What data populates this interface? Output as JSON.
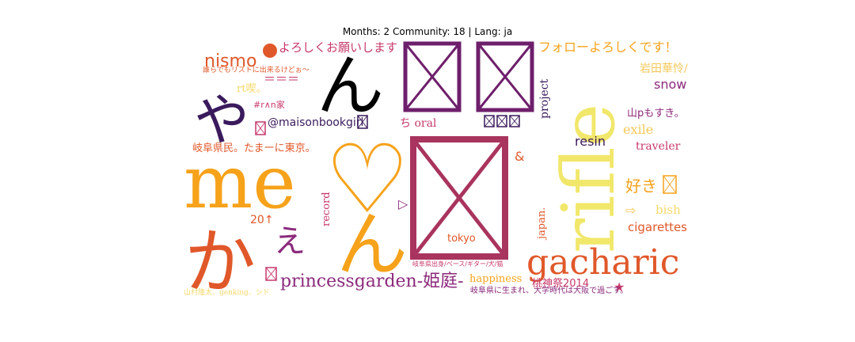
{
  "title": "Months: 2 Community: 18 | Lang: ja",
  "chart_data": {
    "type": "wordcloud",
    "title": "Months: 2 Community: 18 | Lang: ja",
    "words": [
      {
        "text": "me",
        "color": "#f6a21a",
        "size": "xl"
      },
      {
        "text": "♡",
        "color": "#f6a21a",
        "size": "xl"
      },
      {
        "text": "rifle",
        "color": "#f1e76a",
        "size": "xl",
        "rotate": true
      },
      {
        "text": "gacharic",
        "color": "#e0582a",
        "size": "l"
      },
      {
        "text": "princessgarden-姫庭-",
        "color": "#8c2a7c",
        "size": "m"
      },
      {
        "text": "nismo",
        "color": "#e0582a",
        "size": "m"
      },
      {
        "text": "よろしくお願いします",
        "color": "#c7386a",
        "size": "m"
      },
      {
        "text": "フォローよろしくです！",
        "color": "#f6a21a",
        "size": "m"
      },
      {
        "text": "snow",
        "color": "#8c2a7c",
        "size": "s"
      },
      {
        "text": "岩田華怜/",
        "color": "#f6c85a",
        "size": "s"
      },
      {
        "text": "山pもすき。",
        "color": "#8c2a7c",
        "size": "s"
      },
      {
        "text": "exile",
        "color": "#f6c85a",
        "size": "s"
      },
      {
        "text": "traveler",
        "color": "#c7386a",
        "size": "s"
      },
      {
        "text": "resin",
        "color": "#3a1a5c",
        "size": "s"
      },
      {
        "text": "好き",
        "color": "#f6a21a",
        "size": "m"
      },
      {
        "text": "bish",
        "color": "#f6d86a",
        "size": "s"
      },
      {
        "text": "cigarettes",
        "color": "#e0582a",
        "size": "s"
      },
      {
        "text": "happiness",
        "color": "#f6a21a",
        "size": "s"
      },
      {
        "text": "桃神祭2014",
        "color": "#c7386a",
        "size": "s"
      },
      {
        "text": "tokyo",
        "color": "#e0582a",
        "size": "s"
      },
      {
        "text": "@maisonbookgirl",
        "color": "#3a1a5c",
        "size": "s"
      },
      {
        "text": "ち oral",
        "color": "#c7386a",
        "size": "s"
      },
      {
        "text": "岐阜県民。たまーに東京。",
        "color": "#e0582a",
        "size": "s"
      },
      {
        "text": "project",
        "color": "#3a1a5c",
        "size": "s",
        "rotate": true
      },
      {
        "text": "record",
        "color": "#c7386a",
        "size": "s",
        "rotate": true
      },
      {
        "text": "japan.",
        "color": "#e0582a",
        "size": "s",
        "rotate": true
      },
      {
        "text": "え",
        "color": "#8c2a7c",
        "size": "m"
      },
      {
        "text": "ん",
        "color": "#f6a21a",
        "size": "l"
      },
      {
        "text": "か",
        "color": "#e0582a",
        "size": "l"
      },
      {
        "text": "や",
        "color": "#3a1a5c",
        "size": "l"
      },
      {
        "text": "ん",
        "color": "#000000",
        "size": "l"
      },
      {
        "text": "20↑",
        "color": "#e0582a",
        "size": "s"
      },
      {
        "text": "＝＝＝",
        "color": "#c7386a",
        "size": "s"
      },
      {
        "text": "rt喫。",
        "color": "#f6d86a",
        "size": "s"
      },
      {
        "text": "#r∧n家",
        "color": "#c7386a",
        "size": "s"
      },
      {
        "text": "★",
        "color": "#c7386a",
        "size": "s"
      },
      {
        "text": "&",
        "color": "#e0582a",
        "size": "s"
      },
      {
        "text": "⇨",
        "color": "#f6c85a",
        "size": "s"
      },
      {
        "text": "▷",
        "color": "#8c2a7c",
        "size": "s"
      },
      {
        "text": "誰らでもリストに出来るけどぉ～",
        "color": "#e0582a",
        "size": "xs"
      },
      {
        "text": "岐阜県出身/ベース/ギター/犬/猫",
        "color": "#c7386a",
        "size": "xs"
      },
      {
        "text": "岐阜県に生まれ、大学時代は大阪で過ごす。",
        "color": "#8c2a7c",
        "size": "xs"
      },
      {
        "text": "山村隆太、genking、シド",
        "color": "#f6d86a",
        "size": "xs"
      }
    ]
  }
}
